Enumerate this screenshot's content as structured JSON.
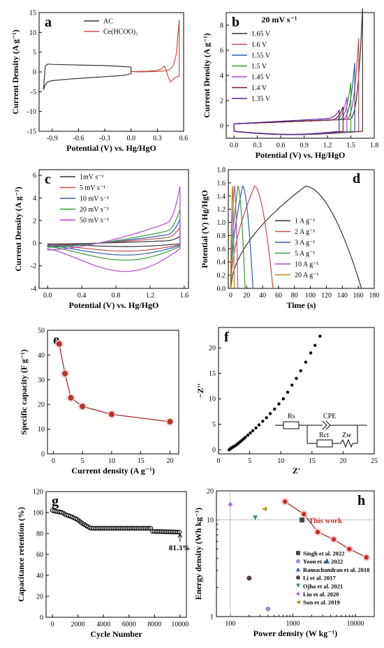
{
  "panels": {
    "a": {
      "label": "a",
      "xlabel": "Potential (V) vs. Hg/HgO",
      "ylabel": "Current Density (A g⁻¹)",
      "xticks": [
        "-0.9",
        "-0.6",
        "-0.3",
        "0.0",
        "0.3",
        "0.6"
      ],
      "yticks": [
        "-15",
        "-10",
        "-5",
        "0",
        "5",
        "10",
        "15"
      ],
      "legend": [
        "AC",
        "Ce(HCOO)₃"
      ]
    },
    "b": {
      "label": "b",
      "title": "20 mV s⁻¹",
      "xlabel": "Potential (V) vs. Hg/HgO",
      "ylabel": "Current Density (A g⁻¹)",
      "xticks": [
        "0.0",
        "0.3",
        "0.6",
        "0.9",
        "1.2",
        "1.5",
        "1.8"
      ],
      "yticks": [
        "0",
        "2",
        "4",
        "6",
        "8"
      ],
      "legend": [
        "1.65 V",
        "1.6 V",
        "1.55 V",
        "1.5 V",
        "1.45 V",
        "1.4 V",
        "1.35 V"
      ]
    },
    "c": {
      "label": "c",
      "xlabel": "Potential (V) vs. Hg/HgO",
      "ylabel": "Current Density (A g⁻¹)",
      "xticks": [
        "0.0",
        "0.4",
        "0.8",
        "1.2",
        "1.6"
      ],
      "yticks": [
        "-4",
        "-2",
        "0",
        "2",
        "4",
        "6"
      ],
      "legend": [
        "1mV s⁻¹",
        "5 mV s⁻¹",
        "10 mV s⁻¹",
        "20 mV s⁻¹",
        "50 mV s⁻¹"
      ]
    },
    "d": {
      "label": "d",
      "xlabel": "Time (s)",
      "ylabel": "Potential (V) Hg/HgO",
      "xticks": [
        "0",
        "20",
        "40",
        "60",
        "80",
        "100",
        "120",
        "140",
        "160",
        "180"
      ],
      "yticks": [
        "0.0",
        "0.2",
        "0.4",
        "0.6",
        "0.8",
        "1.0",
        "1.2",
        "1.4",
        "1.6",
        "1.8"
      ],
      "legend": [
        "1 A g⁻¹",
        "2 A g⁻¹",
        "3 A g⁻¹",
        "5 A g⁻¹",
        "10 A g⁻¹",
        "20 A g⁻¹"
      ]
    },
    "e": {
      "label": "e",
      "xlabel": "Current density (A g⁻¹)",
      "ylabel": "Specific capacity (F g⁻¹)",
      "xticks": [
        "0",
        "5",
        "10",
        "15",
        "20"
      ],
      "yticks": [
        "0",
        "10",
        "20",
        "30",
        "40",
        "50"
      ]
    },
    "f": {
      "label": "f",
      "xlabel": "Z'",
      "ylabel": "−Z''",
      "xticks": [
        "0",
        "5",
        "10",
        "15",
        "20",
        "25"
      ],
      "yticks": [
        "0",
        "5",
        "10",
        "15",
        "20"
      ],
      "circuit": {
        "rs": "Rs",
        "cpe": "CPE",
        "rct": "Rct",
        "zw": "Zw"
      }
    },
    "g": {
      "label": "g",
      "xlabel": "Cycle Number",
      "ylabel": "Capacitance retention (%)",
      "xticks": [
        "0",
        "2000",
        "4000",
        "6000",
        "8000",
        "10000"
      ],
      "yticks": [
        "0",
        "20",
        "40",
        "60",
        "80",
        "100",
        "120"
      ],
      "annotation": "81.3%"
    },
    "h": {
      "label": "h",
      "xlabel": "Power density (W kg⁻¹)",
      "ylabel": "Energy density (Wh kg⁻¹)",
      "xticks": [
        "100",
        "1000",
        "10000"
      ],
      "yticks": [
        "1",
        "10",
        "20"
      ],
      "annotation": "This work",
      "legend": [
        "Singh et al. 2022",
        "Yoon et al. 2022",
        "Ramachandran et al. 2018",
        "Li et al. 2017",
        "Ojha et al. 2021",
        "Liu et al. 2020",
        "Sun et al. 2019"
      ]
    }
  },
  "chart_data": [
    {
      "panel": "a",
      "type": "line",
      "xlim": [
        -1.05,
        0.6
      ],
      "ylim": [
        -15,
        15
      ],
      "series": [
        {
          "name": "AC",
          "color": "#333333",
          "x": [
            -1.0,
            -0.98,
            -0.95,
            -0.9,
            -0.7,
            -0.5,
            -0.3,
            -0.1,
            0.0,
            0.0,
            -0.1,
            -0.3,
            -0.5,
            -0.7,
            -0.9,
            -0.95,
            -0.98,
            -1.0
          ],
          "y": [
            -4.5,
            -3.2,
            -2.5,
            -2.2,
            -1.8,
            -1.5,
            -1.2,
            -0.9,
            -0.5,
            1.2,
            1.4,
            1.6,
            1.7,
            1.8,
            1.9,
            2.0,
            1.5,
            -4.5
          ]
        },
        {
          "name": "Ce(HCOO)₃",
          "color": "#c0504d",
          "x": [
            0.0,
            0.1,
            0.2,
            0.3,
            0.35,
            0.38,
            0.4,
            0.42,
            0.45,
            0.5,
            0.55,
            0.55,
            0.53,
            0.52,
            0.5,
            0.48,
            0.45,
            0.4,
            0.35,
            0.3,
            0.2,
            0.1,
            0.0
          ],
          "y": [
            0.1,
            0.15,
            0.2,
            0.4,
            0.8,
            1.5,
            0.5,
            -1.0,
            -2.5,
            -1.5,
            -1.0,
            13.2,
            8.0,
            5.0,
            3.0,
            1.5,
            0.8,
            0.3,
            0.2,
            0.1,
            0.05,
            0.0,
            0.1
          ]
        }
      ]
    },
    {
      "panel": "b",
      "type": "line",
      "xlim": [
        -0.1,
        1.8
      ],
      "ylim": [
        -1,
        9
      ],
      "series": [
        {
          "name": "1.65 V",
          "color": "#333333",
          "vmax": 1.65
        },
        {
          "name": "1.6 V",
          "color": "#c0504d",
          "vmax": 1.6
        },
        {
          "name": "1.55 V",
          "color": "#2e5eaa",
          "vmax": 1.55
        },
        {
          "name": "1.5 V",
          "color": "#3a9a3a",
          "vmax": 1.5
        },
        {
          "name": "1.45 V",
          "color": "#b04ad0",
          "vmax": 1.45
        },
        {
          "name": "1.4 V",
          "color": "#6b1e1e",
          "vmax": 1.4
        },
        {
          "name": "1.35 V",
          "color": "#5a1fa0",
          "vmax": 1.35
        }
      ]
    },
    {
      "panel": "c",
      "type": "line",
      "xlim": [
        -0.1,
        1.65
      ],
      "ylim": [
        -4,
        6.5
      ],
      "series": [
        {
          "name": "1mV s⁻¹",
          "color": "#333333",
          "scale": 0.12
        },
        {
          "name": "5 mV s⁻¹",
          "color": "#c0504d",
          "scale": 0.28
        },
        {
          "name": "10 mV s⁻¹",
          "color": "#2e5eaa",
          "scale": 0.42
        },
        {
          "name": "20 mV s⁻¹",
          "color": "#3a9a3a",
          "scale": 0.6
        },
        {
          "name": "50 mV s⁻¹",
          "color": "#b04ad0",
          "scale": 1.0
        }
      ]
    },
    {
      "panel": "d",
      "type": "line",
      "xlim": [
        -3,
        180
      ],
      "ylim": [
        0,
        1.8
      ],
      "series": [
        {
          "name": "1 A g⁻¹",
          "color": "#333333",
          "tc": 94,
          "td": 164
        },
        {
          "name": "2 A g⁻¹",
          "color": "#c0504d",
          "tc": 30,
          "td": 53
        },
        {
          "name": "3 A g⁻¹",
          "color": "#2e5eaa",
          "tc": 15,
          "td": 28
        },
        {
          "name": "5 A g⁻¹",
          "color": "#3a9a3a",
          "tc": 9,
          "td": 18
        },
        {
          "name": "10 A g⁻¹",
          "color": "#b04ad0",
          "tc": 4.5,
          "td": 9
        },
        {
          "name": "20 A g⁻¹",
          "color": "#b8860b",
          "tc": 2.2,
          "td": 4.5
        }
      ]
    },
    {
      "panel": "e",
      "type": "line",
      "xlim": [
        -1,
        21.5
      ],
      "ylim": [
        0,
        50
      ],
      "x": [
        1,
        2,
        3,
        5,
        10,
        20
      ],
      "y": [
        44.5,
        32.5,
        22.7,
        19.2,
        16.0,
        13.0
      ],
      "color": "#a52a2a"
    },
    {
      "panel": "f",
      "type": "scatter",
      "xlim": [
        0,
        25
      ],
      "ylim": [
        -0.8,
        24
      ],
      "points": [
        [
          1.7,
          0.0
        ],
        [
          1.8,
          0.1
        ],
        [
          1.9,
          0.2
        ],
        [
          2.0,
          0.3
        ],
        [
          2.1,
          0.4
        ],
        [
          2.25,
          0.5
        ],
        [
          2.4,
          0.6
        ],
        [
          2.6,
          0.75
        ],
        [
          2.8,
          0.9
        ],
        [
          3.0,
          1.1
        ],
        [
          3.2,
          1.3
        ],
        [
          3.45,
          1.55
        ],
        [
          3.7,
          1.8
        ],
        [
          4.0,
          2.1
        ],
        [
          4.3,
          2.45
        ],
        [
          4.7,
          2.85
        ],
        [
          5.1,
          3.3
        ],
        [
          5.5,
          3.75
        ],
        [
          6.0,
          4.3
        ],
        [
          6.5,
          4.9
        ],
        [
          7.1,
          5.6
        ],
        [
          7.7,
          6.3
        ],
        [
          8.3,
          7.1
        ],
        [
          9.0,
          8.0
        ],
        [
          9.7,
          9.0
        ],
        [
          10.4,
          10.0
        ],
        [
          11.1,
          11.3
        ],
        [
          11.8,
          12.7
        ],
        [
          12.5,
          14.0
        ],
        [
          13.2,
          15.5
        ],
        [
          14.0,
          17.2
        ],
        [
          14.8,
          19.0
        ],
        [
          15.5,
          20.5
        ],
        [
          16.3,
          22.3
        ]
      ]
    },
    {
      "panel": "g",
      "type": "scatter",
      "xlim": [
        -500,
        10500
      ],
      "ylim": [
        0,
        120
      ],
      "end_label": "81.3%",
      "keypoints": [
        [
          0,
          102
        ],
        [
          300,
          101
        ],
        [
          800,
          100
        ],
        [
          1000,
          98
        ],
        [
          1500,
          96
        ],
        [
          2000,
          93
        ],
        [
          2300,
          90
        ],
        [
          2700,
          87
        ],
        [
          3000,
          85
        ],
        [
          7700,
          85
        ],
        [
          7800,
          82
        ],
        [
          10000,
          81.3
        ]
      ]
    },
    {
      "panel": "h",
      "type": "scatter",
      "xlog": true,
      "ylog": true,
      "xlim": [
        60,
        20000
      ],
      "ylim": [
        1,
        20
      ],
      "this_work": {
        "x": [
          750,
          1500,
          2500,
          4500,
          8000,
          15000
        ],
        "y": [
          15.5,
          11.5,
          7.5,
          6.3,
          5.0,
          4.1
        ]
      },
      "references": [
        {
          "name": "Singh et al. 2022",
          "color": "#444444",
          "shape": "square",
          "x": 1400,
          "y": 10.0
        },
        {
          "name": "Yoon et al. 2022",
          "color": "#a78bd6",
          "shape": "circle",
          "x": 400,
          "y": 1.2
        },
        {
          "name": "Ramachandran et al. 2018",
          "color": "#2e5eaa",
          "shape": "triangle-up",
          "x": 3500,
          "y": 3.8
        },
        {
          "name": "Li et al. 2017",
          "color": "#5a3d3d",
          "shape": "circle",
          "x": 200,
          "y": 2.5
        },
        {
          "name": "Ojha et al. 2021",
          "color": "#3a9a5a",
          "shape": "triangle-down",
          "x": 250,
          "y": 10.5
        },
        {
          "name": "Liu et al. 2020",
          "color": "#b070e0",
          "shape": "diamond",
          "x": 100,
          "y": 14.5
        },
        {
          "name": "Sun et al. 2019",
          "color": "#b8a020",
          "shape": "triangle-left",
          "x": 350,
          "y": 13.0
        }
      ]
    }
  ]
}
